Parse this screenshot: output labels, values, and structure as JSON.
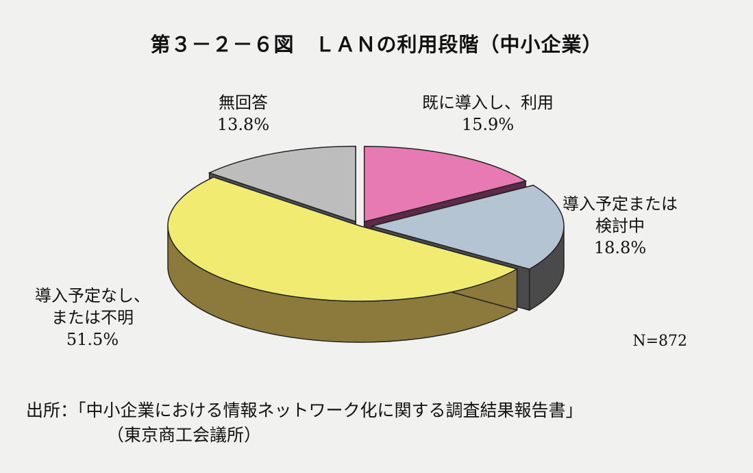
{
  "title": "第３－２－６図　ＬＡＮの利用段階（中小企業）",
  "note": "N=872",
  "source": {
    "line1": "出所：「中小企業における情報ネットワーク化に関する調査結果報告書」",
    "line2": "（東京商工会議所）"
  },
  "chart_data": {
    "type": "pie",
    "title": "ＬＡＮの利用段階（中小企業）",
    "unit": "%",
    "note": "N=872",
    "slices": [
      {
        "label_lines": [
          "既に導入し、利用"
        ],
        "value": 15.9,
        "value_label": "15.9%",
        "color": "#e77ab3",
        "side": "#5a2a48"
      },
      {
        "label_lines": [
          "導入予定または",
          "検討中"
        ],
        "value": 18.8,
        "value_label": "18.8%",
        "color": "#b4c4d2",
        "side": "#4a4a4a"
      },
      {
        "label_lines": [
          "導入予定なし、",
          "または不明"
        ],
        "value": 51.5,
        "value_label": "51.5%",
        "color": "#f0ec72",
        "side": "#8b7a3c"
      },
      {
        "label_lines": [
          "無回答"
        ],
        "value": 13.8,
        "value_label": "13.8%",
        "color": "#bdbdbd",
        "side": "#4f4f4f"
      }
    ]
  }
}
